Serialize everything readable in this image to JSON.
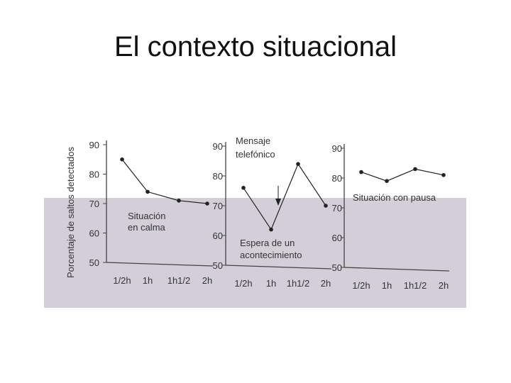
{
  "slide": {
    "title": "El contexto situacional"
  },
  "colors": {
    "panel": "#d3cfd9",
    "line": "#222222",
    "axis": "#444444"
  },
  "chart_data": {
    "type": "line",
    "ylabel": "Porcentaje de saltos detectados",
    "categories": [
      "1/2h",
      "1h",
      "1h1/2",
      "2h"
    ],
    "ylim": [
      50,
      90
    ],
    "yticks": [
      50,
      60,
      70,
      80,
      90
    ],
    "panels": [
      {
        "annotations": [
          "Situación",
          "en calma"
        ],
        "values": [
          85,
          74,
          71,
          70
        ]
      },
      {
        "annotations": [
          "Mensaje",
          "telefónico",
          "Espera de un",
          "acontecimiento"
        ],
        "values": [
          76,
          62,
          84,
          70
        ]
      },
      {
        "annotations": [
          "Situación con pausa"
        ],
        "values": [
          82,
          79,
          83,
          81
        ]
      }
    ]
  }
}
